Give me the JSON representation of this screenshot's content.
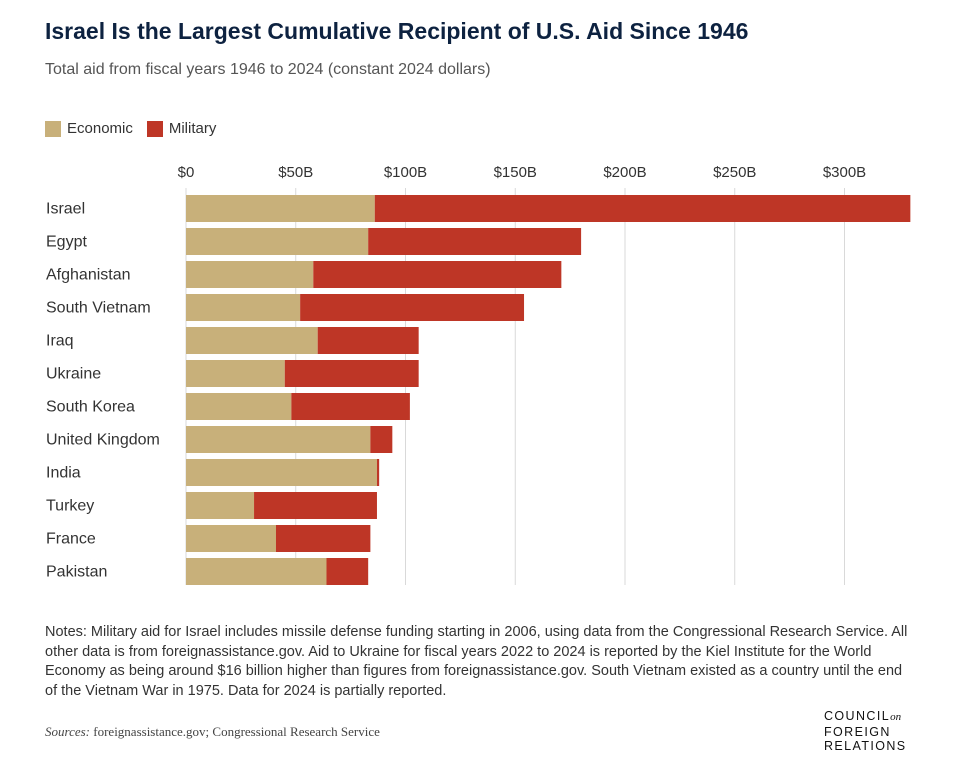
{
  "header": {
    "title": "Israel Is the Largest Cumulative Recipient of U.S. Aid Since 1946",
    "subtitle": "Total aid from fiscal years 1946 to 2024 (constant 2024 dollars)"
  },
  "legend": [
    {
      "label": "Economic",
      "color": "#c8b07a"
    },
    {
      "label": "Military",
      "color": "#be3626"
    }
  ],
  "chart_data": {
    "type": "bar",
    "orientation": "horizontal",
    "stacked": true,
    "categories": [
      "Israel",
      "Egypt",
      "Afghanistan",
      "South Vietnam",
      "Iraq",
      "Ukraine",
      "South Korea",
      "United Kingdom",
      "India",
      "Turkey",
      "France",
      "Pakistan"
    ],
    "series": [
      {
        "name": "Economic",
        "color": "#c8b07a",
        "values": [
          86,
          83,
          58,
          52,
          60,
          45,
          48,
          84,
          87,
          31,
          41,
          64
        ]
      },
      {
        "name": "Military",
        "color": "#be3626",
        "values": [
          244,
          97,
          113,
          102,
          46,
          61,
          54,
          10,
          1,
          56,
          43,
          19
        ]
      }
    ],
    "xlim": [
      0,
      330
    ],
    "x_ticks": [
      "$0",
      "$50B",
      "$100B",
      "$150B",
      "$200B",
      "$250B",
      "$300B"
    ],
    "x_tick_values": [
      0,
      50,
      100,
      150,
      200,
      250,
      300
    ],
    "xlabel": "",
    "ylabel": "",
    "grid": true,
    "legend_position": "top-left"
  },
  "notes": "Notes: Military aid for Israel includes missile defense funding starting in 2006, using data from the Congressional Research Service. All other data is from foreignassistance.gov. Aid to Ukraine for fiscal years 2022 to 2024 is reported by the Kiel Institute for the World Economy as being around $16 billion higher than figures from foreignassistance.gov. South Vietnam existed as a country until the end of the Vietnam War in 1975. Data for 2024 is partially reported.",
  "sources": {
    "label": "Sources:",
    "text": " foreignassistance.gov; Congressional Research Service"
  },
  "logo": {
    "line1": "COUNCIL",
    "on": "on",
    "line2": "FOREIGN",
    "line3": "RELATIONS"
  }
}
